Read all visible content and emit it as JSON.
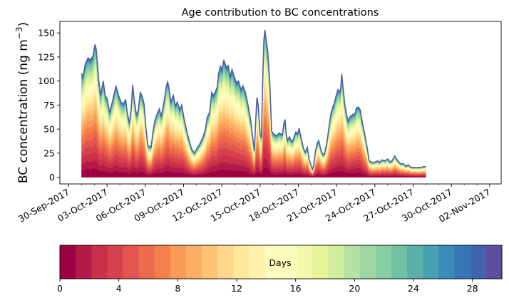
{
  "chart_data": {
    "type": "area",
    "title": "Age contribution to BC concentrations",
    "ylabel": "BC concentration (ng m",
    "ylabel_sup": "−3",
    "ylabel_close": ")",
    "xlabel": "",
    "ylim": [
      -7,
      162
    ],
    "xlim_days": [
      -0.7,
      33.9
    ],
    "x_start_date": "2017-09-30",
    "yticks": [
      0,
      25,
      50,
      75,
      100,
      125,
      150
    ],
    "ytick_labels": [
      "0",
      "25",
      "50",
      "75",
      "100",
      "125",
      "150"
    ],
    "xticks_days": [
      0,
      3,
      6,
      9,
      12,
      15,
      18,
      21,
      24,
      27,
      30,
      33
    ],
    "xtick_labels": [
      "30-Sep-2017",
      "03-Oct-2017",
      "06-Oct-2017",
      "09-Oct-2017",
      "12-Oct-2017",
      "15-Oct-2017",
      "18-Oct-2017",
      "21-Oct-2017",
      "24-Oct-2017",
      "27-Oct-2017",
      "30-Oct-2017",
      "02-Nov-2017"
    ],
    "series_total_description": "Total BC concentration (top of stacked age contributions), sampled versus days since 30-Sep-2017",
    "total": [
      [
        1.0,
        108
      ],
      [
        1.1,
        104
      ],
      [
        1.3,
        118
      ],
      [
        1.5,
        124
      ],
      [
        1.7,
        122
      ],
      [
        1.9,
        126
      ],
      [
        2.05,
        138
      ],
      [
        2.15,
        133
      ],
      [
        2.35,
        100
      ],
      [
        2.5,
        85
      ],
      [
        2.7,
        100
      ],
      [
        2.85,
        85
      ],
      [
        3.0,
        82
      ],
      [
        3.2,
        67
      ],
      [
        3.45,
        80
      ],
      [
        3.7,
        95
      ],
      [
        3.9,
        85
      ],
      [
        4.1,
        78
      ],
      [
        4.3,
        76
      ],
      [
        4.45,
        81
      ],
      [
        4.6,
        66
      ],
      [
        4.75,
        56
      ],
      [
        4.9,
        72
      ],
      [
        5.0,
        96
      ],
      [
        5.15,
        78
      ],
      [
        5.3,
        65
      ],
      [
        5.45,
        69
      ],
      [
        5.6,
        88
      ],
      [
        5.75,
        84
      ],
      [
        5.9,
        76
      ],
      [
        6.05,
        50
      ],
      [
        6.2,
        33
      ],
      [
        6.45,
        31
      ],
      [
        6.6,
        47
      ],
      [
        6.75,
        59
      ],
      [
        6.9,
        65
      ],
      [
        7.1,
        71
      ],
      [
        7.25,
        63
      ],
      [
        7.5,
        81
      ],
      [
        7.65,
        95
      ],
      [
        7.75,
        99
      ],
      [
        7.85,
        93
      ],
      [
        8.0,
        78
      ],
      [
        8.2,
        85
      ],
      [
        8.35,
        74
      ],
      [
        8.5,
        78
      ],
      [
        8.7,
        70
      ],
      [
        8.85,
        75
      ],
      [
        9.05,
        60
      ],
      [
        9.3,
        45
      ],
      [
        9.6,
        30
      ],
      [
        9.85,
        25
      ],
      [
        10.05,
        30
      ],
      [
        10.25,
        34
      ],
      [
        10.5,
        41
      ],
      [
        10.7,
        49
      ],
      [
        10.85,
        62
      ],
      [
        11.05,
        68
      ],
      [
        11.2,
        88
      ],
      [
        11.35,
        85
      ],
      [
        11.5,
        89
      ],
      [
        11.65,
        94
      ],
      [
        11.75,
        108
      ],
      [
        11.9,
        116
      ],
      [
        12.0,
        110
      ],
      [
        12.15,
        122
      ],
      [
        12.35,
        114
      ],
      [
        12.5,
        116
      ],
      [
        12.65,
        104
      ],
      [
        12.8,
        112
      ],
      [
        12.95,
        105
      ],
      [
        13.15,
        98
      ],
      [
        13.3,
        100
      ],
      [
        13.5,
        91
      ],
      [
        13.65,
        95
      ],
      [
        13.85,
        88
      ],
      [
        14.05,
        75
      ],
      [
        14.25,
        60
      ],
      [
        14.45,
        38
      ],
      [
        14.55,
        27
      ],
      [
        14.65,
        57
      ],
      [
        14.75,
        83
      ],
      [
        14.85,
        75
      ],
      [
        15.0,
        45
      ],
      [
        15.1,
        41
      ],
      [
        15.2,
        100
      ],
      [
        15.3,
        143
      ],
      [
        15.38,
        153
      ],
      [
        15.45,
        145
      ],
      [
        15.6,
        131
      ],
      [
        15.75,
        100
      ],
      [
        15.9,
        48
      ],
      [
        16.05,
        45
      ],
      [
        16.3,
        43
      ],
      [
        16.5,
        46
      ],
      [
        16.75,
        44
      ],
      [
        16.85,
        55
      ],
      [
        16.95,
        60
      ],
      [
        17.05,
        44
      ],
      [
        17.15,
        38
      ],
      [
        17.3,
        42
      ],
      [
        17.45,
        37
      ],
      [
        17.6,
        39
      ],
      [
        17.8,
        47
      ],
      [
        17.95,
        45
      ],
      [
        18.05,
        51
      ],
      [
        18.15,
        45
      ],
      [
        18.4,
        30
      ],
      [
        18.55,
        26
      ],
      [
        18.7,
        31
      ],
      [
        18.85,
        18
      ],
      [
        19.0,
        12
      ],
      [
        19.1,
        8
      ],
      [
        19.2,
        12
      ],
      [
        19.35,
        28
      ],
      [
        19.5,
        36
      ],
      [
        19.6,
        38
      ],
      [
        19.75,
        29
      ],
      [
        19.9,
        24
      ],
      [
        20.05,
        24
      ],
      [
        20.25,
        37
      ],
      [
        20.4,
        52
      ],
      [
        20.55,
        66
      ],
      [
        20.7,
        73
      ],
      [
        20.8,
        76
      ],
      [
        20.95,
        84
      ],
      [
        21.1,
        91
      ],
      [
        21.3,
        89
      ],
      [
        21.4,
        107
      ],
      [
        21.5,
        93
      ],
      [
        21.65,
        75
      ],
      [
        21.8,
        64
      ],
      [
        21.9,
        58
      ],
      [
        22.05,
        63
      ],
      [
        22.25,
        65
      ],
      [
        22.45,
        66
      ],
      [
        22.55,
        72
      ],
      [
        22.7,
        73
      ],
      [
        22.85,
        70
      ],
      [
        23.0,
        58
      ],
      [
        23.2,
        45
      ],
      [
        23.4,
        30
      ],
      [
        23.55,
        17
      ],
      [
        23.8,
        15
      ],
      [
        24.05,
        16
      ],
      [
        24.25,
        17
      ],
      [
        24.35,
        15
      ],
      [
        24.55,
        18
      ],
      [
        24.8,
        17
      ],
      [
        25.0,
        19
      ],
      [
        25.15,
        16
      ],
      [
        25.35,
        17
      ],
      [
        25.55,
        22
      ],
      [
        25.75,
        18
      ],
      [
        26.0,
        14
      ],
      [
        26.25,
        14
      ],
      [
        26.45,
        11
      ],
      [
        26.6,
        13
      ],
      [
        26.75,
        11
      ],
      [
        26.9,
        10
      ],
      [
        27.0,
        10
      ],
      [
        27.2,
        10
      ],
      [
        27.3,
        10
      ],
      [
        27.5,
        10
      ],
      [
        27.6,
        10
      ],
      [
        27.85,
        11
      ],
      [
        28.0,
        11
      ]
    ],
    "colorbar": {
      "label": "Days",
      "min": 0,
      "max": 30,
      "ticks": [
        0,
        4,
        8,
        12,
        16,
        20,
        24,
        28
      ],
      "tick_labels": [
        "0",
        "4",
        "8",
        "12",
        "16",
        "20",
        "24",
        "28"
      ],
      "colors": [
        "#9e0142",
        "#b41a47",
        "#c83148",
        "#d7404d",
        "#e35550",
        "#ed6b4d",
        "#f57f4b",
        "#f99a57",
        "#fcae63",
        "#fdc476",
        "#fed88a",
        "#fee89b",
        "#fff2ac",
        "#fffbbd",
        "#fbfdba",
        "#f2f9ab",
        "#e6f598",
        "#d0ec9d",
        "#b6e1a3",
        "#9ed7a4",
        "#86cea4",
        "#70c2a5",
        "#5bb1a9",
        "#479fb3",
        "#3a8bba",
        "#3577b8",
        "#4065ae",
        "#5e4fa2"
      ]
    }
  }
}
